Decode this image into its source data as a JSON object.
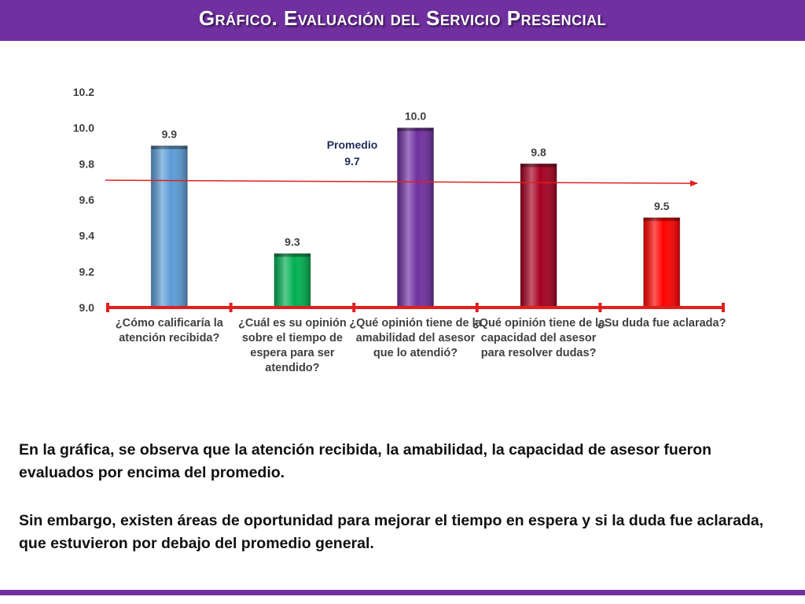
{
  "header": {
    "title": "Gráfico. Evaluación del Servicio Presencial"
  },
  "chart_data": {
    "type": "bar",
    "categories": [
      "¿Cómo calificaría la atención recibida?",
      "¿Cuál es su opinión sobre el tiempo de espera para ser atendido?",
      "¿Qué opinión tiene de la amabilidad del asesor que lo atendió?",
      "¿Qué opinión tiene de la capacidad del asesor para resolver dudas?",
      "¿Su duda fue aclarada?"
    ],
    "values": [
      9.9,
      9.3,
      10.0,
      9.8,
      9.5
    ],
    "value_labels": [
      "9.9",
      "9.3",
      "10.0",
      "9.8",
      "9.5"
    ],
    "bar_colors": [
      "#5b9bd5",
      "#00b050",
      "#7030a0",
      "#a50021",
      "#ff0000"
    ],
    "ylim": [
      9.0,
      10.2
    ],
    "yticks": [
      "9.0",
      "9.2",
      "9.4",
      "9.6",
      "9.8",
      "10.0",
      "10.2"
    ],
    "average": {
      "label": "Promedio",
      "value": 9.7,
      "value_label": "9.7",
      "color": "#e0201e"
    },
    "axis_color": "#e0201e",
    "grid": false,
    "legend": "none"
  },
  "summary": {
    "paragraph_1": "En la gráfica, se observa que la atención recibida, la amabilidad, la capacidad de asesor fueron evaluados por encima del promedio.",
    "paragraph_2": "Sin embargo, existen áreas de oportunidad para mejorar el tiempo en espera y si la duda fue aclarada, que estuvieron por debajo del promedio general."
  }
}
